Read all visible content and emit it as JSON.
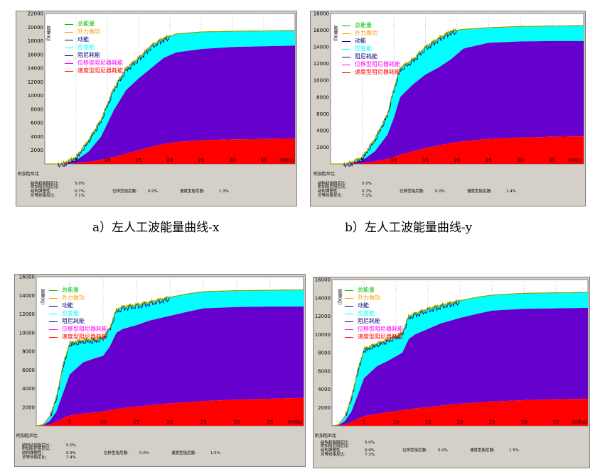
{
  "captions": [
    "a）左人工波能量曲线-x",
    "b）左人工波能量曲线-y"
  ],
  "legend": [
    {
      "label": "总能量",
      "color": "#00c000"
    },
    {
      "label": "外力做功",
      "color": "#ff9900"
    },
    {
      "label": "动能",
      "color": "#000080"
    },
    {
      "label": "应变能",
      "color": "#00ffff"
    },
    {
      "label": "阻尼耗能",
      "color": "#000080"
    },
    {
      "label": "位移型阻尼器耗能",
      "color": "#ff00ff"
    },
    {
      "label": "速度型阻尼器耗能",
      "color": "#ff0000"
    }
  ],
  "colors": {
    "strain": "#00ffff",
    "damping": "#6600cc",
    "velocity_damper": "#ff0000",
    "total": "#00c000",
    "external": "#ff9900",
    "kinetic": "#000080"
  },
  "panel_labels": {
    "ylabel": "能量(KJ)",
    "xlabel": "时间(s)",
    "stats_title": "附加阻尼比",
    "structural_label": "结构初始阻尼比:",
    "filler_label": "附加阻尼阻尼比:",
    "yield_label": "结构弹塑性:",
    "total_label": "总等效阻尼比:",
    "disp_label": "位移型阻尼器:",
    "vel_label": "速度型阻尼器:"
  },
  "panels": [
    {
      "stats": {
        "structural": "5.0%",
        "yield": "0.7%",
        "total": "7.1%",
        "disp": "0.0%",
        "vel": "1.3%"
      }
    },
    {
      "stats": {
        "structural": "5.0%",
        "yield": "0.7%",
        "total": "7.1%",
        "disp": "0.0%",
        "vel": "1.4%"
      }
    },
    {
      "stats": {
        "structural": "5.0%",
        "yield": "0.9%",
        "total": "7.4%",
        "disp": "0.0%",
        "vel": "1.5%"
      }
    },
    {
      "stats": {
        "structural": "5.0%",
        "yield": "0.9%",
        "total": "7.3%",
        "disp": "0.0%",
        "vel": "1.5%"
      }
    }
  ],
  "chart_data": [
    {
      "type": "area",
      "xlim": [
        0,
        40
      ],
      "ylim": [
        0,
        22000
      ],
      "xticks": [
        5,
        10,
        15,
        20,
        25,
        30,
        35
      ],
      "yticks": [
        2000,
        4000,
        6000,
        8000,
        10000,
        12000,
        14000,
        16000,
        18000,
        20000,
        22000
      ],
      "series": [
        {
          "name": "总能量",
          "x": [
            0,
            2,
            3,
            5,
            7,
            9,
            11,
            13,
            15,
            17,
            19,
            21,
            25,
            30,
            35,
            40
          ],
          "y": [
            0,
            0,
            100,
            1000,
            3500,
            6500,
            11000,
            14000,
            15500,
            17300,
            18400,
            19000,
            19300,
            19400,
            19450,
            19500
          ]
        },
        {
          "name": "阻尼耗能",
          "x": [
            0,
            2,
            3,
            5,
            7,
            9,
            11,
            13,
            15,
            17,
            19,
            21,
            25,
            30,
            35,
            40
          ],
          "y": [
            0,
            0,
            50,
            500,
            1800,
            4000,
            7800,
            10800,
            12500,
            14000,
            15500,
            16300,
            16800,
            17100,
            17200,
            17300
          ]
        },
        {
          "name": "速度型阻尼器耗能",
          "x": [
            0,
            2,
            3,
            5,
            7,
            9,
            11,
            13,
            15,
            17,
            19,
            21,
            25,
            30,
            35,
            40
          ],
          "y": [
            0,
            0,
            20,
            100,
            300,
            600,
            1000,
            1500,
            2000,
            2500,
            2900,
            3200,
            3450,
            3600,
            3650,
            3700
          ]
        }
      ]
    },
    {
      "type": "area",
      "xlim": [
        0,
        40
      ],
      "ylim": [
        0,
        18000
      ],
      "xticks": [
        5,
        10,
        15,
        20,
        25,
        30,
        35
      ],
      "yticks": [
        2000,
        4000,
        6000,
        8000,
        10000,
        12000,
        14000,
        16000,
        18000
      ],
      "series": [
        {
          "name": "总能量",
          "x": [
            0,
            2,
            3,
            5,
            7,
            9,
            10,
            11,
            13,
            15,
            17,
            19,
            21,
            25,
            30,
            35,
            40
          ],
          "y": [
            0,
            0,
            100,
            800,
            3000,
            6000,
            9000,
            11500,
            12500,
            14000,
            15000,
            15900,
            16100,
            16300,
            16450,
            16500,
            16550
          ]
        },
        {
          "name": "阻尼耗能",
          "x": [
            0,
            2,
            3,
            5,
            7,
            9,
            10,
            11,
            13,
            15,
            17,
            19,
            21,
            25,
            30,
            35,
            40
          ],
          "y": [
            0,
            0,
            50,
            400,
            1500,
            3500,
            5500,
            8000,
            9500,
            10700,
            11500,
            12500,
            13800,
            14500,
            14650,
            14700,
            14700
          ]
        },
        {
          "name": "速度型阻尼器耗能",
          "x": [
            0,
            2,
            3,
            5,
            7,
            9,
            10,
            11,
            13,
            15,
            17,
            19,
            21,
            25,
            30,
            35,
            40
          ],
          "y": [
            0,
            0,
            20,
            100,
            300,
            600,
            800,
            1100,
            1500,
            1900,
            2200,
            2500,
            2700,
            3000,
            3150,
            3250,
            3300
          ]
        }
      ]
    },
    {
      "type": "area",
      "xlim": [
        0,
        40
      ],
      "ylim": [
        0,
        16000
      ],
      "xticks": [
        5,
        10,
        15,
        20,
        25,
        30,
        35
      ],
      "yticks": [
        2000,
        4000,
        6000,
        8000,
        10000,
        12000,
        14000,
        16000
      ],
      "series": [
        {
          "name": "总能量",
          "x": [
            0,
            1,
            2,
            3,
            4,
            5,
            7,
            9,
            10,
            11,
            12,
            13,
            15,
            17,
            20,
            23,
            25,
            30,
            35,
            40
          ],
          "y": [
            0,
            100,
            1000,
            3000,
            6500,
            8900,
            9200,
            9300,
            9500,
            10500,
            12500,
            12800,
            13000,
            13300,
            13800,
            14200,
            14400,
            14500,
            14550,
            14600
          ]
        },
        {
          "name": "阻尼耗能",
          "x": [
            0,
            1,
            2,
            3,
            4,
            5,
            7,
            9,
            10,
            11,
            12,
            13,
            15,
            17,
            20,
            23,
            25,
            30,
            35,
            40
          ],
          "y": [
            0,
            50,
            500,
            1500,
            3500,
            5500,
            6800,
            7300,
            7500,
            8500,
            10000,
            10400,
            10800,
            11300,
            11800,
            12300,
            12600,
            12750,
            12800,
            12800
          ]
        },
        {
          "name": "速度型阻尼器耗能",
          "x": [
            0,
            1,
            2,
            3,
            4,
            5,
            7,
            9,
            10,
            11,
            12,
            13,
            15,
            17,
            20,
            23,
            25,
            30,
            35,
            40
          ],
          "y": [
            0,
            20,
            150,
            400,
            800,
            1100,
            1300,
            1450,
            1550,
            1650,
            1800,
            1900,
            2050,
            2200,
            2400,
            2550,
            2650,
            2800,
            2900,
            3000
          ]
        }
      ]
    },
    {
      "type": "area",
      "xlim": [
        0,
        40
      ],
      "ylim": [
        0,
        16000
      ],
      "xticks": [
        5,
        10,
        15,
        20,
        25,
        30,
        35
      ],
      "yticks": [
        2000,
        4000,
        6000,
        8000,
        10000,
        12000,
        14000,
        16000
      ],
      "series": [
        {
          "name": "总能量",
          "x": [
            0,
            1,
            2,
            3,
            4,
            5,
            7,
            9,
            11,
            12,
            13,
            15,
            17,
            20,
            23,
            25,
            30,
            35,
            40
          ],
          "y": [
            0,
            100,
            1000,
            3000,
            6000,
            8400,
            9000,
            9500,
            10200,
            12000,
            12300,
            12800,
            13200,
            13700,
            14100,
            14300,
            14500,
            14550,
            14600
          ]
        },
        {
          "name": "阻尼耗能",
          "x": [
            0,
            1,
            2,
            3,
            4,
            5,
            7,
            9,
            11,
            12,
            13,
            15,
            17,
            20,
            23,
            25,
            30,
            35,
            40
          ],
          "y": [
            0,
            50,
            500,
            1500,
            3300,
            5200,
            6500,
            7200,
            8000,
            9500,
            10000,
            10600,
            11200,
            11800,
            12300,
            12600,
            12800,
            12850,
            12900
          ]
        },
        {
          "name": "速度型阻尼器耗能",
          "x": [
            0,
            1,
            2,
            3,
            4,
            5,
            7,
            9,
            11,
            12,
            13,
            15,
            17,
            20,
            23,
            25,
            30,
            35,
            40
          ],
          "y": [
            0,
            20,
            150,
            400,
            750,
            1050,
            1300,
            1500,
            1700,
            1800,
            1900,
            2050,
            2200,
            2400,
            2550,
            2650,
            2800,
            2900,
            2950
          ]
        }
      ]
    }
  ]
}
